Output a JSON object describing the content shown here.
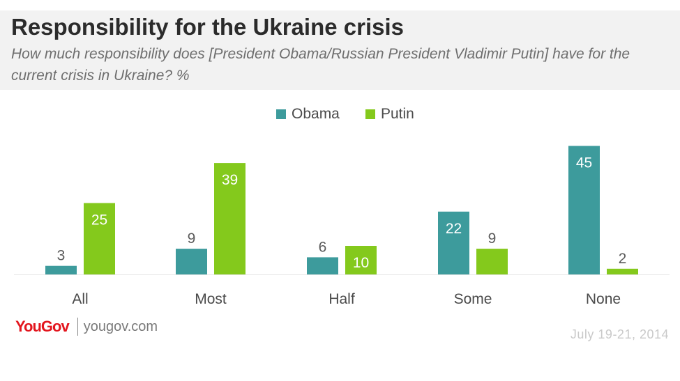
{
  "header": {
    "title": "Responsibility for the Ukraine crisis",
    "subtitle": "How much responsibility does [President Obama/Russian President Vladimir Putin] have for the current crisis in Ukraine? %"
  },
  "legend": [
    {
      "label": "Obama",
      "color": "#3d9b9c"
    },
    {
      "label": "Putin",
      "color": "#84c91c"
    }
  ],
  "chart_data": {
    "type": "bar",
    "categories": [
      "All",
      "Most",
      "Half",
      "Some",
      "None"
    ],
    "series": [
      {
        "name": "Obama",
        "values": [
          3,
          9,
          6,
          22,
          45
        ],
        "color": "#3d9b9c"
      },
      {
        "name": "Putin",
        "values": [
          25,
          39,
          10,
          9,
          2
        ],
        "color": "#84c91c"
      }
    ],
    "title": "Responsibility for the Ukraine crisis",
    "legend_position": "top-center",
    "grid": false
  },
  "footer": {
    "brand": "YouGov",
    "site": "yougov.com",
    "date": "July 19-21, 2014"
  }
}
